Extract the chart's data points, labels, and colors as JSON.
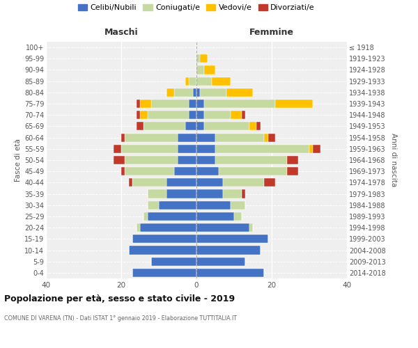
{
  "age_groups": [
    "0-4",
    "5-9",
    "10-14",
    "15-19",
    "20-24",
    "25-29",
    "30-34",
    "35-39",
    "40-44",
    "45-49",
    "50-54",
    "55-59",
    "60-64",
    "65-69",
    "70-74",
    "75-79",
    "80-84",
    "85-89",
    "90-94",
    "95-99",
    "100+"
  ],
  "birth_years": [
    "2014-2018",
    "2009-2013",
    "2004-2008",
    "1999-2003",
    "1994-1998",
    "1989-1993",
    "1984-1988",
    "1979-1983",
    "1974-1978",
    "1969-1973",
    "1964-1968",
    "1959-1963",
    "1954-1958",
    "1949-1953",
    "1944-1948",
    "1939-1943",
    "1934-1938",
    "1929-1933",
    "1924-1928",
    "1919-1923",
    "≤ 1918"
  ],
  "maschi": {
    "celibi": [
      17,
      12,
      18,
      17,
      15,
      13,
      10,
      8,
      8,
      6,
      5,
      5,
      5,
      3,
      2,
      2,
      1,
      0,
      0,
      0,
      0
    ],
    "coniugati": [
      0,
      0,
      0,
      0,
      1,
      1,
      3,
      5,
      9,
      13,
      14,
      15,
      14,
      11,
      11,
      10,
      5,
      2,
      0,
      0,
      0
    ],
    "vedovi": [
      0,
      0,
      0,
      0,
      0,
      0,
      0,
      0,
      0,
      0,
      0,
      0,
      0,
      0,
      2,
      3,
      2,
      1,
      0,
      0,
      0
    ],
    "divorziati": [
      0,
      0,
      0,
      0,
      0,
      0,
      0,
      0,
      1,
      1,
      3,
      2,
      1,
      2,
      1,
      1,
      0,
      0,
      0,
      0,
      0
    ]
  },
  "femmine": {
    "nubili": [
      18,
      13,
      17,
      19,
      14,
      10,
      9,
      7,
      7,
      6,
      5,
      5,
      5,
      2,
      2,
      2,
      1,
      0,
      0,
      0,
      0
    ],
    "coniugate": [
      0,
      0,
      0,
      0,
      1,
      2,
      4,
      5,
      11,
      18,
      19,
      25,
      13,
      12,
      7,
      19,
      7,
      4,
      2,
      1,
      0
    ],
    "vedove": [
      0,
      0,
      0,
      0,
      0,
      0,
      0,
      0,
      0,
      0,
      0,
      1,
      1,
      2,
      3,
      10,
      7,
      5,
      3,
      2,
      0
    ],
    "divorziate": [
      0,
      0,
      0,
      0,
      0,
      0,
      0,
      1,
      3,
      3,
      3,
      2,
      2,
      1,
      1,
      0,
      0,
      0,
      0,
      0,
      0
    ]
  },
  "colors": {
    "celibi": "#4472c4",
    "coniugati": "#c5d9a0",
    "vedovi": "#ffc000",
    "divorziati": "#c0392b"
  },
  "xlim": 40,
  "title": "Popolazione per età, sesso e stato civile - 2019",
  "subtitle": "COMUNE DI VARENA (TN) - Dati ISTAT 1° gennaio 2019 - Elaborazione TUTTITALIA.IT",
  "xlabel_left": "Maschi",
  "xlabel_right": "Femmine",
  "ylabel_left": "Fasce di età",
  "ylabel_right": "Anni di nascita",
  "legend_labels": [
    "Celibi/Nubili",
    "Coniugati/e",
    "Vedovi/e",
    "Divorziati/e"
  ]
}
